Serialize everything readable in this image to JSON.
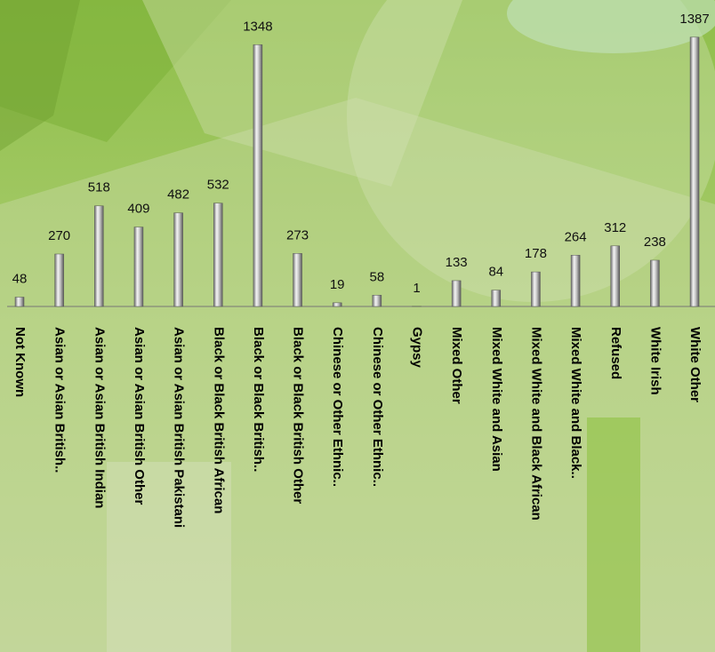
{
  "chart_data": {
    "type": "bar",
    "categories": [
      "Not Known",
      "Asian or Asian British..",
      "Asian or Asian British Indian",
      "Asian or Asian British Other",
      "Asian or Asian British Pakistani",
      "Black or Black British African",
      "Black or Black British..",
      "Black or Black British Other",
      "Chinese or Other Ethnic..",
      "Chinese or Other Ethnic..",
      "Gypsy",
      "Mixed Other",
      "Mixed White and Asian",
      "Mixed White and Black African",
      "Mixed White and Black..",
      "Refused",
      "White Irish",
      "White Other"
    ],
    "values": [
      48,
      270,
      518,
      409,
      482,
      532,
      1348,
      273,
      19,
      58,
      1,
      133,
      84,
      178,
      264,
      312,
      238,
      1387
    ],
    "color": "#c0c0c0",
    "ylim": [
      0,
      1400
    ]
  }
}
